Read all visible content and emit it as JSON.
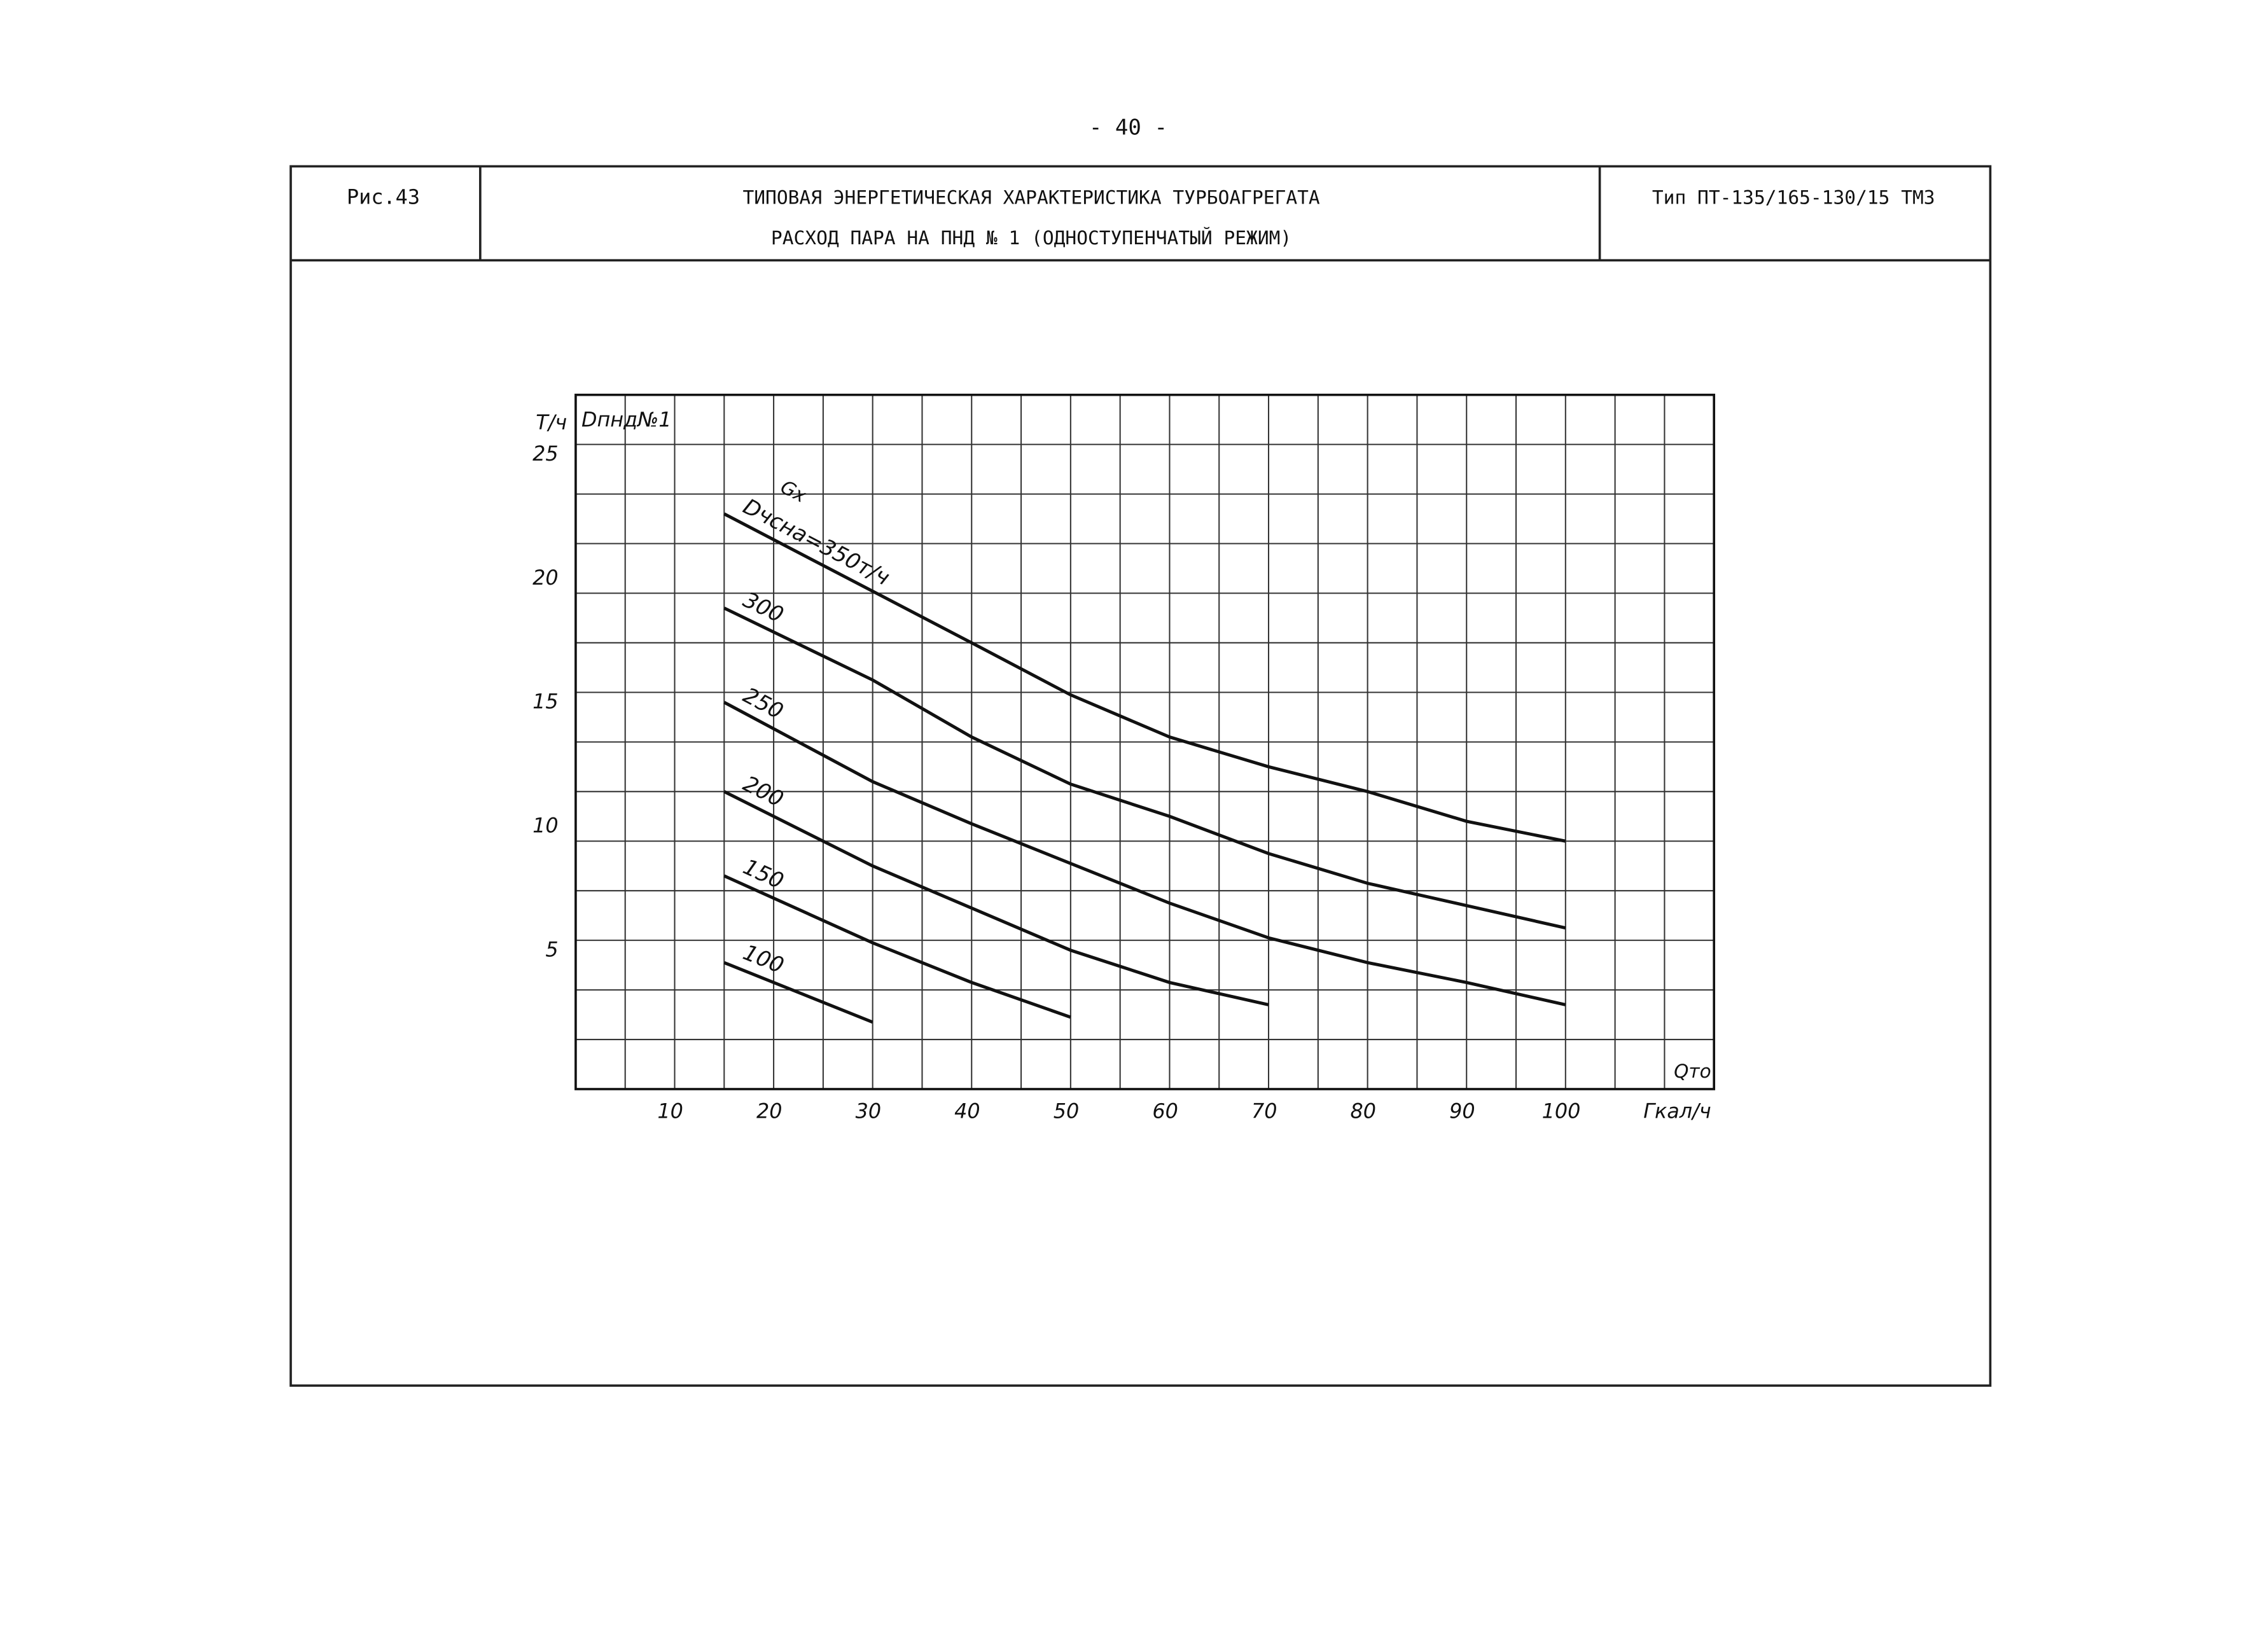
{
  "page_number": "- 40 -",
  "header": {
    "figure": "Рис.43",
    "title": "ТИПОВАЯ ЭНЕРГЕТИЧЕСКАЯ ХАРАКТЕРИСТИКА ТУРБОАГРЕГАТА",
    "subtitle": "РАСХОД ПАРА НА ПНД № 1 (ОДНОСТУПЕНЧАТЫЙ РЕЖИМ)",
    "type": "Тип ПТ-135/165-130/15 ТМЗ"
  },
  "chart_data": {
    "type": "line",
    "y_unit": "Т/ч",
    "y_label": "Dпнд№1",
    "x_label": "Qто",
    "x_unit": "Гкал/ч",
    "series_note": "Gх",
    "xlim": [
      0,
      115
    ],
    "ylim": [
      0,
      28
    ],
    "xticks": [
      10,
      20,
      30,
      40,
      50,
      60,
      70,
      80,
      90,
      100
    ],
    "yticks": [
      5,
      10,
      15,
      20,
      25
    ],
    "xgrid": [
      5,
      10,
      15,
      20,
      25,
      30,
      35,
      40,
      45,
      50,
      55,
      60,
      65,
      70,
      75,
      80,
      85,
      90,
      95,
      100,
      105,
      110
    ],
    "ygrid": [
      2,
      4,
      6,
      8,
      10,
      12,
      14,
      16,
      18,
      20,
      22,
      24,
      26
    ],
    "series": [
      {
        "name": "Dчсна=350т/ч",
        "color": "#111111",
        "x": [
          15,
          40,
          50,
          60,
          70,
          80,
          90,
          100
        ],
        "values": [
          23.2,
          18.0,
          15.9,
          14.2,
          13.0,
          12.0,
          10.8,
          10.0
        ]
      },
      {
        "name": "300",
        "color": "#111111",
        "x": [
          15,
          30,
          40,
          50,
          60,
          70,
          80,
          90,
          100
        ],
        "values": [
          19.4,
          16.5,
          14.2,
          12.3,
          11.0,
          9.5,
          8.3,
          7.4,
          6.5
        ]
      },
      {
        "name": "250",
        "color": "#111111",
        "x": [
          15,
          30,
          40,
          50,
          60,
          70,
          80,
          90,
          100
        ],
        "values": [
          15.6,
          12.4,
          10.7,
          9.1,
          7.5,
          6.1,
          5.1,
          4.3,
          3.4
        ]
      },
      {
        "name": "200",
        "color": "#111111",
        "x": [
          15,
          30,
          40,
          50,
          60,
          70
        ],
        "values": [
          12.0,
          9.0,
          7.3,
          5.6,
          4.3,
          3.4
        ]
      },
      {
        "name": "150",
        "color": "#111111",
        "x": [
          15,
          30,
          40,
          50
        ],
        "values": [
          8.6,
          5.9,
          4.3,
          2.9
        ]
      },
      {
        "name": "100",
        "color": "#111111",
        "x": [
          15,
          30
        ],
        "values": [
          5.1,
          2.7
        ]
      }
    ]
  }
}
